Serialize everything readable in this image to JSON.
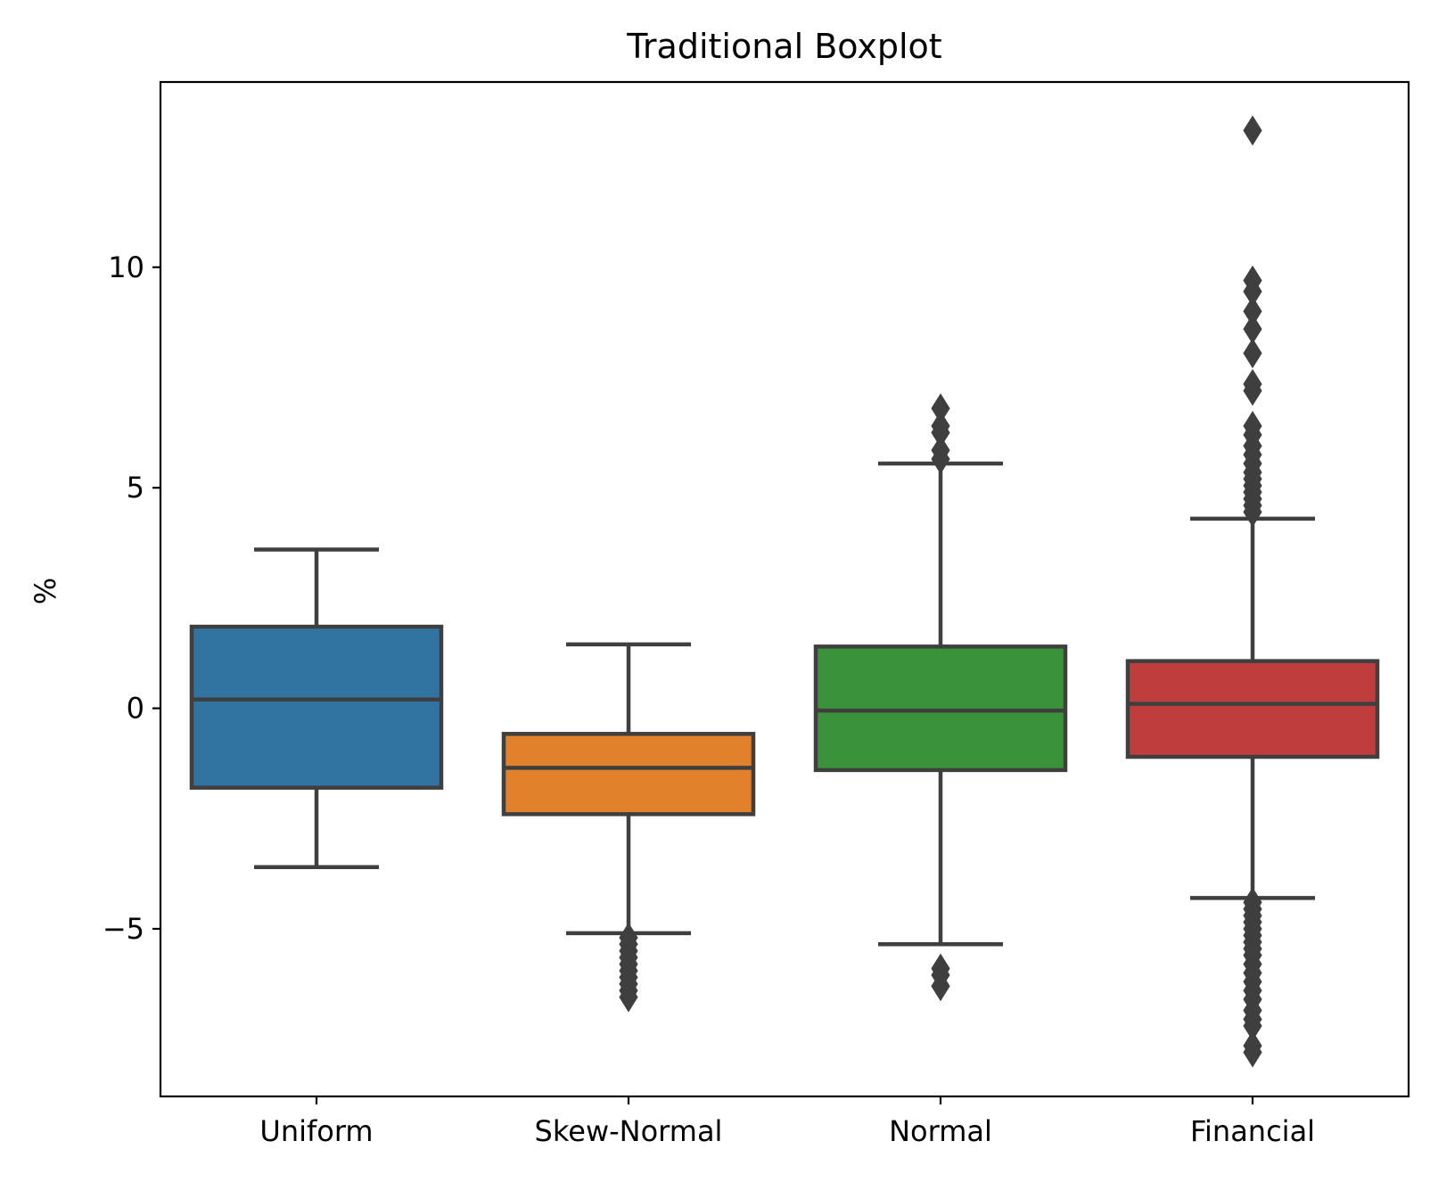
{
  "chart_data": {
    "type": "box",
    "title": "Traditional Boxplot",
    "xlabel": "",
    "ylabel": "%",
    "ylim": [
      -8.8,
      14.2
    ],
    "yticks": [
      -5,
      0,
      5,
      10
    ],
    "ytick_labels": [
      "−5",
      "0",
      "5",
      "10"
    ],
    "grid": false,
    "categories": [
      "Uniform",
      "Skew-Normal",
      "Normal",
      "Financial"
    ],
    "colors": [
      "#3274a1",
      "#e1812c",
      "#3a923a",
      "#c03d3e"
    ],
    "edge_color": "#3f3f3f",
    "series": [
      {
        "name": "Uniform",
        "whisker_low": -3.6,
        "q1": -1.8,
        "median": 0.2,
        "q3": 1.85,
        "whisker_high": 3.6,
        "outliers": []
      },
      {
        "name": "Skew-Normal",
        "whisker_low": -5.1,
        "q1": -2.4,
        "median": -1.35,
        "q3": -0.58,
        "whisker_high": 1.45,
        "outliers": [
          -5.2,
          -5.35,
          -5.5,
          -5.65,
          -5.8,
          -5.95,
          -6.1,
          -6.25,
          -6.4,
          -6.55
        ]
      },
      {
        "name": "Normal",
        "whisker_low": -5.35,
        "q1": -1.4,
        "median": -0.05,
        "q3": 1.4,
        "whisker_high": 5.55,
        "outliers": [
          -5.9,
          -6.05,
          -6.3,
          5.65,
          5.85,
          6.25,
          6.4,
          6.8
        ]
      },
      {
        "name": "Financial",
        "whisker_low": -4.3,
        "q1": -1.1,
        "median": 0.1,
        "q3": 1.07,
        "whisker_high": 4.3,
        "outliers": [
          -4.4,
          -4.55,
          -4.7,
          -4.85,
          -5.0,
          -5.15,
          -5.3,
          -5.45,
          -5.6,
          -5.8,
          -6.0,
          -6.2,
          -6.4,
          -6.6,
          -6.85,
          -7.05,
          -7.2,
          -7.65,
          -7.8,
          4.45,
          4.6,
          4.75,
          4.9,
          5.05,
          5.2,
          5.35,
          5.55,
          5.75,
          5.95,
          6.2,
          6.4,
          7.2,
          7.35,
          8.05,
          8.6,
          9.0,
          9.45,
          9.7,
          13.1
        ]
      }
    ]
  }
}
